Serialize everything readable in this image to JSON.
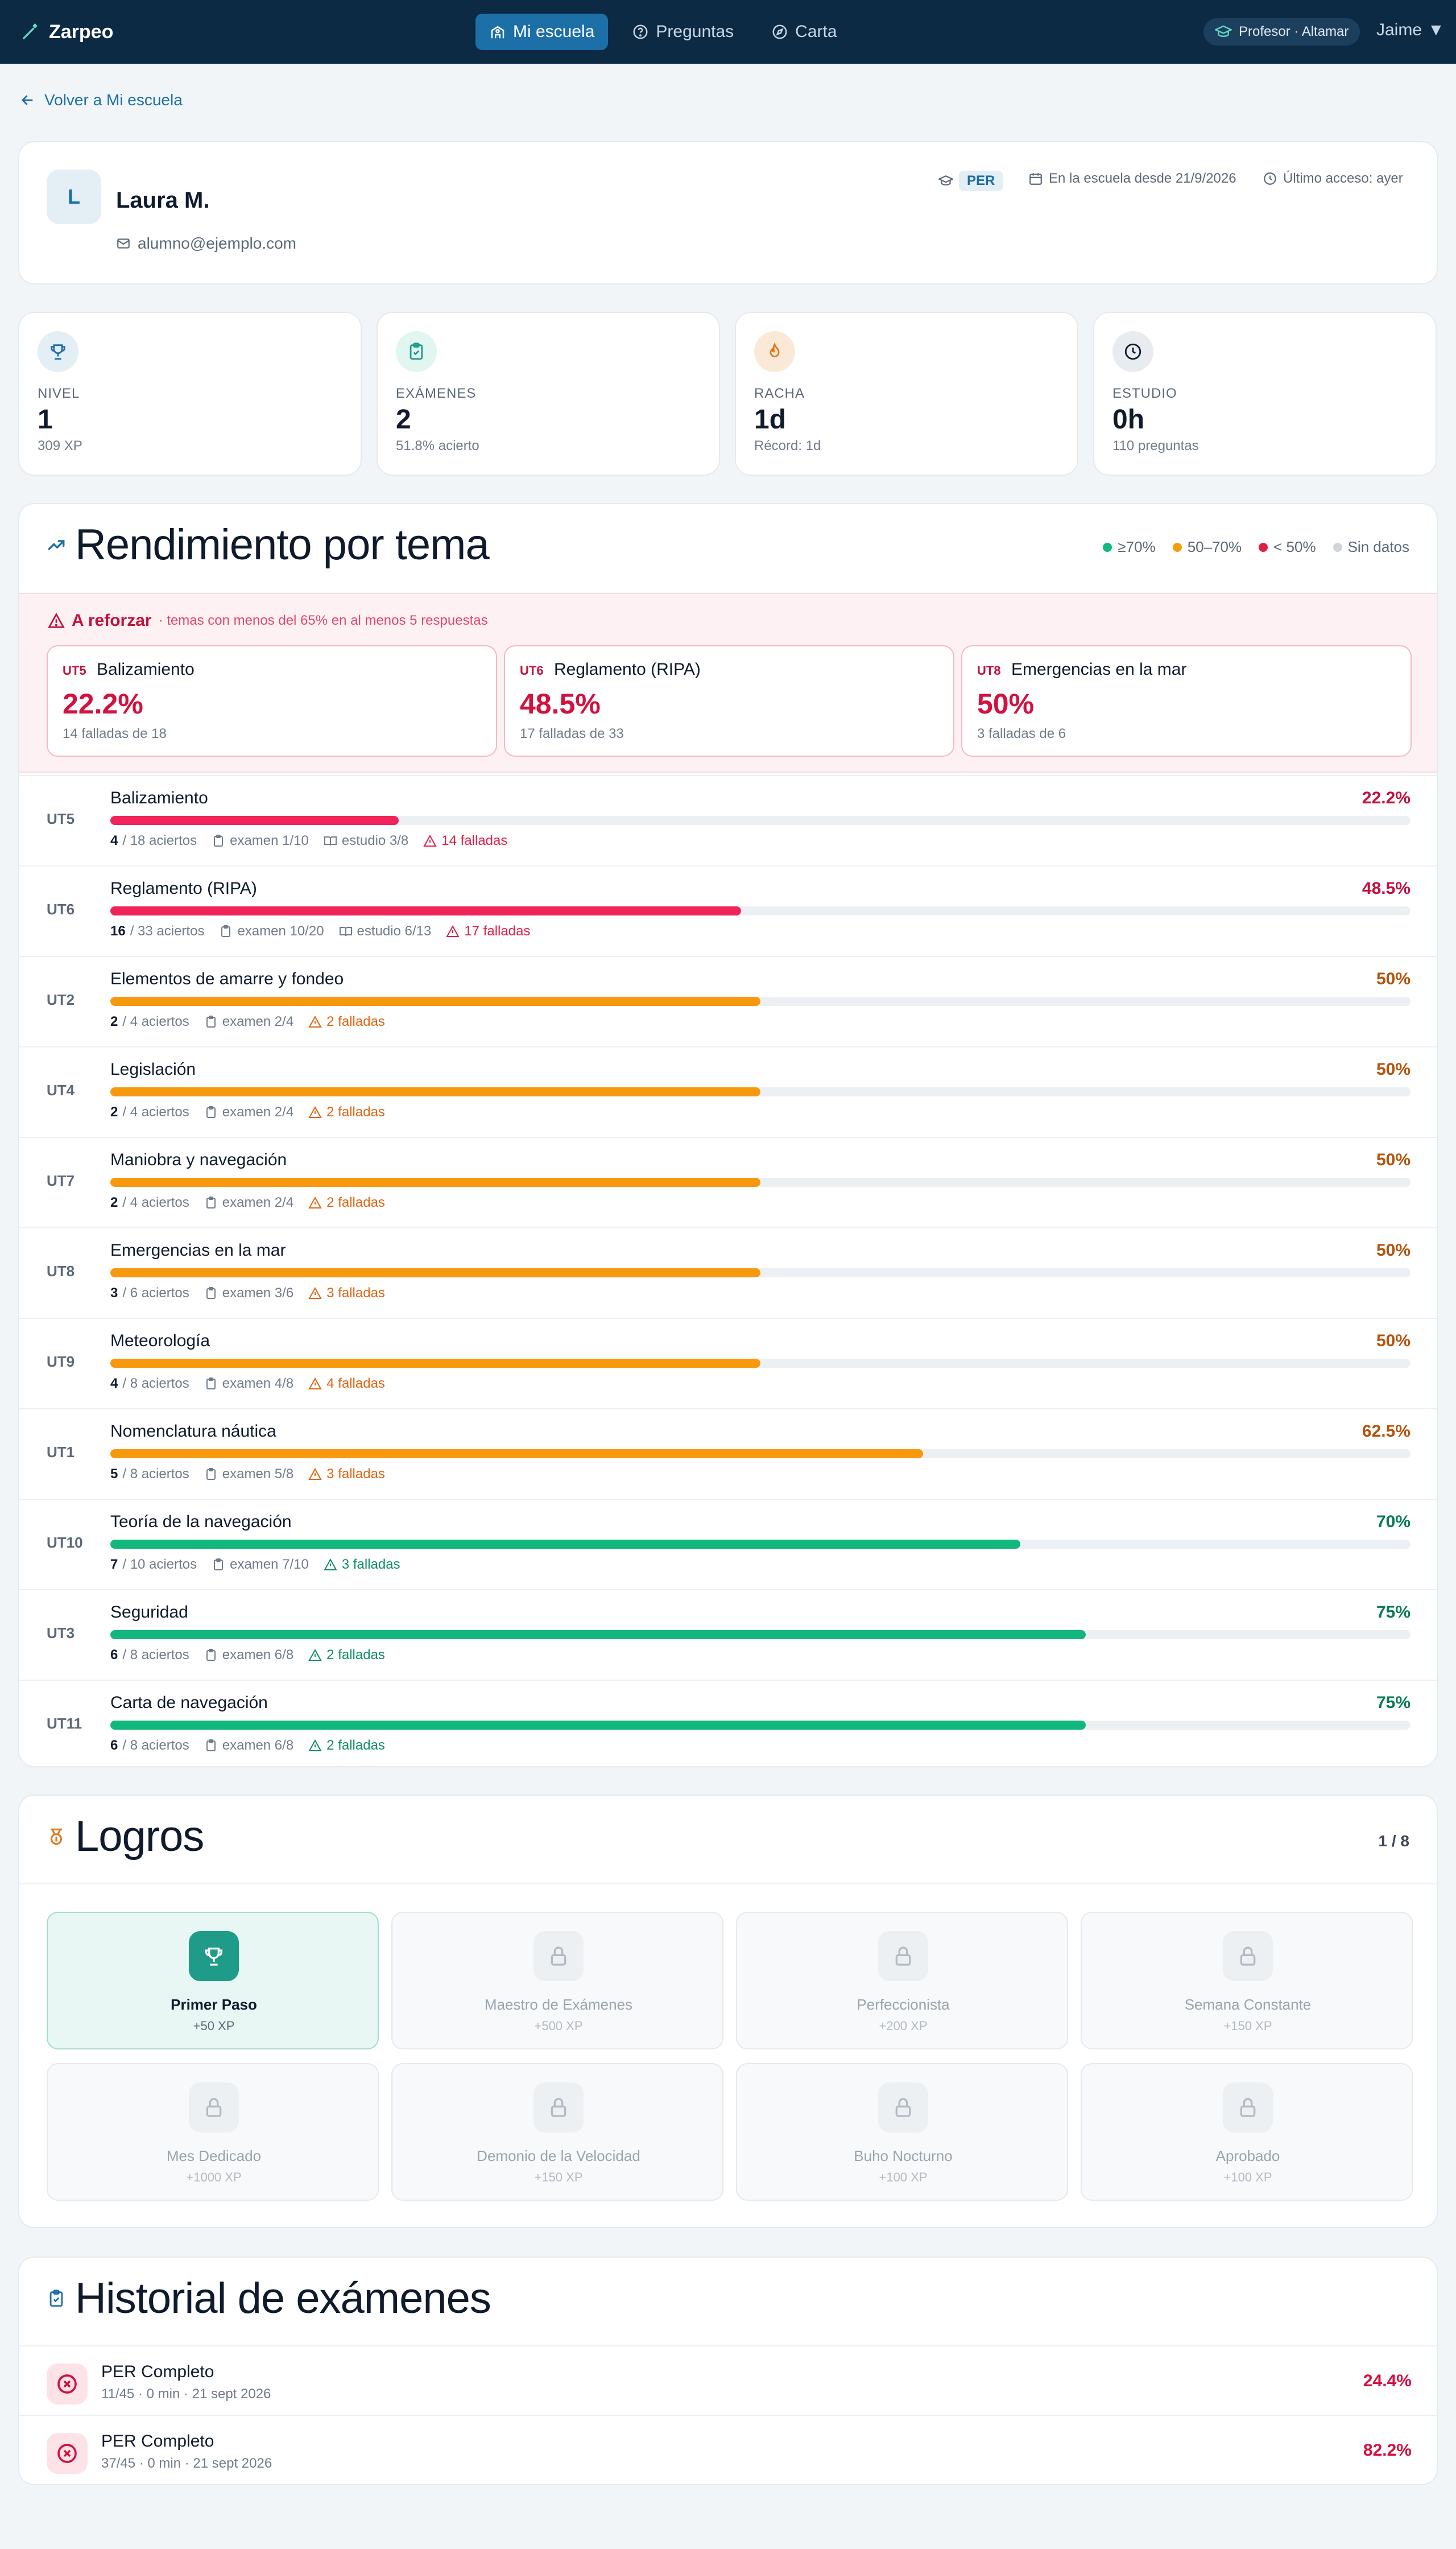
{
  "app": {
    "name": "Zarpeo",
    "brand_icon": "wand-icon"
  },
  "nav": [
    {
      "label": "Mi escuela",
      "icon": "school-icon",
      "active": true
    },
    {
      "label": "Preguntas",
      "icon": "help-circle-icon",
      "active": false
    },
    {
      "label": "Carta",
      "icon": "compass-icon",
      "active": false
    }
  ],
  "role_badge": "Profesor · Altamar",
  "user_menu": "Jaime",
  "back_link": "Volver a Mi escuela",
  "profile": {
    "initial": "L",
    "name": "Laura M.",
    "email": "alumno@ejemplo.com",
    "license": "PER",
    "since": "En la escuela desde 21/9/2026",
    "last_access": "Último acceso: ayer"
  },
  "stats": [
    {
      "label": "NIVEL",
      "value": "1",
      "sub": "309 XP",
      "icon": "trophy-icon",
      "color": "#1d6fa8",
      "bg": "#e3eef5"
    },
    {
      "label": "EXÁMENES",
      "value": "2",
      "sub": "51.8% acierto",
      "icon": "clipboard-check-icon",
      "color": "#1f9c89",
      "bg": "#e1f5f1"
    },
    {
      "label": "RACHA",
      "value": "1d",
      "sub": "Récord: 1d",
      "icon": "flame-icon",
      "color": "#e07a1f",
      "bg": "#fbe9d7"
    },
    {
      "label": "ESTUDIO",
      "value": "0h",
      "sub": "110 preguntas",
      "icon": "clock-icon",
      "color": "#0f1b2d",
      "bg": "#e8ecf0"
    }
  ],
  "performance": {
    "title": "Rendimiento por tema",
    "legend": [
      {
        "label": "≥70%",
        "color": "#10b981"
      },
      {
        "label": "50–70%",
        "color": "#f59e0b"
      },
      {
        "label": "< 50%",
        "color": "#e11d48"
      },
      {
        "label": "Sin datos",
        "color": "#d1d5db"
      }
    ],
    "reinforce": {
      "title": "A reforzar",
      "subtitle": "· temas con menos del 65% en al menos 5 respuestas",
      "items": [
        {
          "code": "UT5",
          "name": "Balizamiento",
          "pct": "22.2%",
          "sub": "14 falladas de 18"
        },
        {
          "code": "UT6",
          "name": "Reglamento (RIPA)",
          "pct": "48.5%",
          "sub": "17 falladas de 33"
        },
        {
          "code": "UT8",
          "name": "Emergencias en la mar",
          "pct": "50%",
          "sub": "3 falladas de 6"
        }
      ]
    },
    "topics": [
      {
        "code": "UT5",
        "name": "Balizamiento",
        "pct": "22.2%",
        "fraction": 0.222,
        "level": "low",
        "correct": "4",
        "total": "/ 18 aciertos",
        "exam": "examen 1/10",
        "study": "estudio 3/8",
        "failed": "14 falladas"
      },
      {
        "code": "UT6",
        "name": "Reglamento (RIPA)",
        "pct": "48.5%",
        "fraction": 0.485,
        "level": "low",
        "correct": "16",
        "total": "/ 33 aciertos",
        "exam": "examen 10/20",
        "study": "estudio 6/13",
        "failed": "17 falladas"
      },
      {
        "code": "UT2",
        "name": "Elementos de amarre y fondeo",
        "pct": "50%",
        "fraction": 0.5,
        "level": "mid",
        "correct": "2",
        "total": "/ 4 aciertos",
        "exam": "examen 2/4",
        "study": "",
        "failed": "2 falladas"
      },
      {
        "code": "UT4",
        "name": "Legislación",
        "pct": "50%",
        "fraction": 0.5,
        "level": "mid",
        "correct": "2",
        "total": "/ 4 aciertos",
        "exam": "examen 2/4",
        "study": "",
        "failed": "2 falladas"
      },
      {
        "code": "UT7",
        "name": "Maniobra y navegación",
        "pct": "50%",
        "fraction": 0.5,
        "level": "mid",
        "correct": "2",
        "total": "/ 4 aciertos",
        "exam": "examen 2/4",
        "study": "",
        "failed": "2 falladas"
      },
      {
        "code": "UT8",
        "name": "Emergencias en la mar",
        "pct": "50%",
        "fraction": 0.5,
        "level": "mid",
        "correct": "3",
        "total": "/ 6 aciertos",
        "exam": "examen 3/6",
        "study": "",
        "failed": "3 falladas"
      },
      {
        "code": "UT9",
        "name": "Meteorología",
        "pct": "50%",
        "fraction": 0.5,
        "level": "mid",
        "correct": "4",
        "total": "/ 8 aciertos",
        "exam": "examen 4/8",
        "study": "",
        "failed": "4 falladas"
      },
      {
        "code": "UT1",
        "name": "Nomenclatura náutica",
        "pct": "62.5%",
        "fraction": 0.625,
        "level": "mid",
        "correct": "5",
        "total": "/ 8 aciertos",
        "exam": "examen 5/8",
        "study": "",
        "failed": "3 falladas"
      },
      {
        "code": "UT10",
        "name": "Teoría de la navegación",
        "pct": "70%",
        "fraction": 0.7,
        "level": "high",
        "correct": "7",
        "total": "/ 10 aciertos",
        "exam": "examen 7/10",
        "study": "",
        "failed": "3 falladas"
      },
      {
        "code": "UT3",
        "name": "Seguridad",
        "pct": "75%",
        "fraction": 0.75,
        "level": "high",
        "correct": "6",
        "total": "/ 8 aciertos",
        "exam": "examen 6/8",
        "study": "",
        "failed": "2 falladas"
      },
      {
        "code": "UT11",
        "name": "Carta de navegación",
        "pct": "75%",
        "fraction": 0.75,
        "level": "high",
        "correct": "6",
        "total": "/ 8 aciertos",
        "exam": "examen 6/8",
        "study": "",
        "failed": "2 falladas"
      }
    ],
    "colors": {
      "low": {
        "bar": "#f0245a",
        "text": "#c2123e",
        "warn": "#e11d48"
      },
      "mid": {
        "bar": "#f7990f",
        "text": "#b4540b",
        "warn": "#e06512"
      },
      "high": {
        "bar": "#12b77e",
        "text": "#0a7a55",
        "warn": "#0e8f63"
      }
    }
  },
  "achievements": {
    "title": "Logros",
    "count": "1 / 8",
    "items": [
      {
        "name": "Primer Paso",
        "xp": "+50 XP",
        "unlocked": true
      },
      {
        "name": "Maestro de Exámenes",
        "xp": "+500 XP",
        "unlocked": false
      },
      {
        "name": "Perfeccionista",
        "xp": "+200 XP",
        "unlocked": false
      },
      {
        "name": "Semana Constante",
        "xp": "+150 XP",
        "unlocked": false
      },
      {
        "name": "Mes Dedicado",
        "xp": "+1000 XP",
        "unlocked": false
      },
      {
        "name": "Demonio de la Velocidad",
        "xp": "+150 XP",
        "unlocked": false
      },
      {
        "name": "Buho Nocturno",
        "xp": "+100 XP",
        "unlocked": false
      },
      {
        "name": "Aprobado",
        "xp": "+100 XP",
        "unlocked": false
      }
    ]
  },
  "history": {
    "title": "Historial de exámenes",
    "items": [
      {
        "name": "PER Completo",
        "sub": "11/45 · 0 min · 21 sept 2026",
        "pct": "24.4%"
      },
      {
        "name": "PER Completo",
        "sub": "37/45 · 0 min · 21 sept 2026",
        "pct": "82.2%"
      }
    ]
  }
}
